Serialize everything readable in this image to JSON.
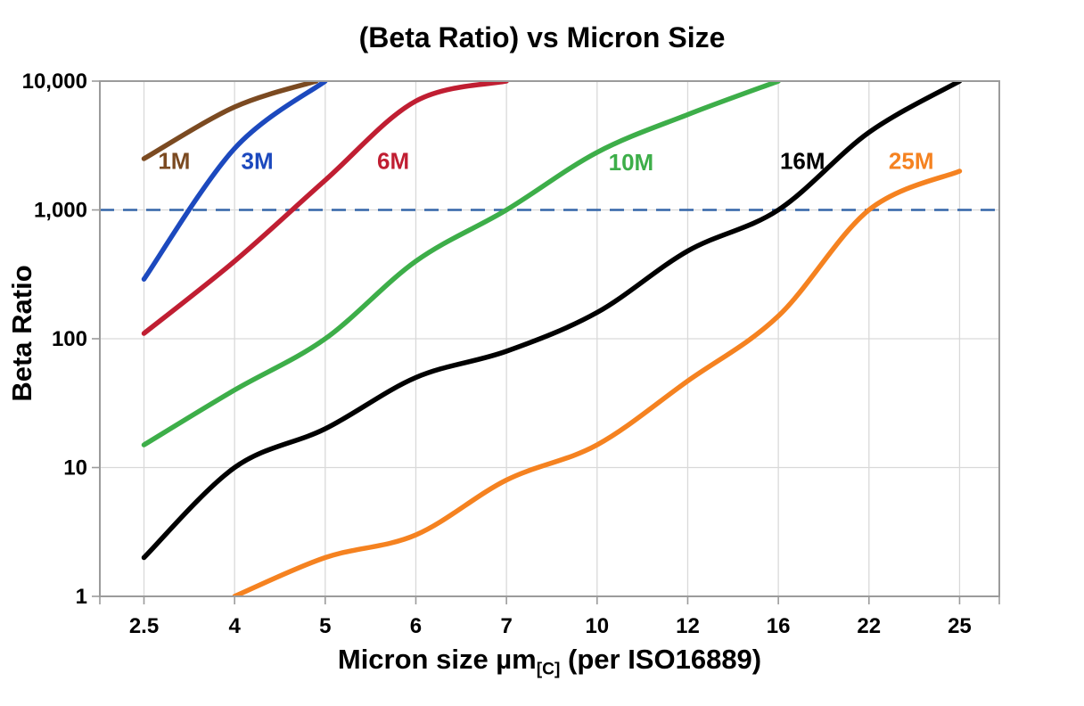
{
  "chart_data": {
    "type": "line",
    "title": "(Beta Ratio) vs Micron Size",
    "ylabel": "Beta Ratio",
    "xlabel_prefix": "Micron size µm",
    "xlabel_subscript": "[C]",
    "xlabel_suffix": " (per ISO16889)",
    "x_categories": [
      2.5,
      4,
      5,
      6,
      7,
      10,
      12,
      16,
      22,
      25
    ],
    "x_tick_labels": [
      "2.5",
      "4",
      "5",
      "6",
      "7",
      "10",
      "12",
      "16",
      "22",
      "25"
    ],
    "y_scale": "log",
    "ylim": [
      1,
      10000
    ],
    "y_ticks": [
      1,
      10,
      100,
      1000,
      10000
    ],
    "y_tick_labels": [
      "1",
      "10",
      "100",
      "1,000",
      "10,000"
    ],
    "grid": {
      "show": true,
      "color": "#d9d9d9",
      "border_color": "#9b9b9b",
      "tick_color": "#9b9b9b"
    },
    "reference_line": {
      "beta": 1000,
      "style": "dashed",
      "color": "#3465A8"
    },
    "series": [
      {
        "name": "1M",
        "color": "#7B4A21",
        "label_pos": {
          "micron": 3.0,
          "beta": 2400
        },
        "points": [
          [
            2.5,
            2500
          ],
          [
            4,
            6300
          ],
          [
            4.9,
            10000
          ]
        ]
      },
      {
        "name": "3M",
        "color": "#1C49BE",
        "label_pos": {
          "micron": 4.25,
          "beta": 2400
        },
        "points": [
          [
            2.5,
            290
          ],
          [
            4,
            3000
          ],
          [
            5,
            10000
          ]
        ]
      },
      {
        "name": "6M",
        "color": "#C01E32",
        "label_pos": {
          "micron": 5.75,
          "beta": 2400
        },
        "points": [
          [
            2.5,
            110
          ],
          [
            4,
            400
          ],
          [
            5,
            1700
          ],
          [
            6,
            7000
          ],
          [
            7,
            10000
          ]
        ]
      },
      {
        "name": "10M",
        "color": "#3DAE49",
        "label_pos": {
          "micron": 10.75,
          "beta": 2350
        },
        "points": [
          [
            2.5,
            15
          ],
          [
            4,
            40
          ],
          [
            5,
            100
          ],
          [
            6,
            400
          ],
          [
            7,
            1000
          ],
          [
            10,
            2800
          ],
          [
            12,
            5500
          ],
          [
            16,
            10000
          ]
        ]
      },
      {
        "name": "16M",
        "color": "#000000",
        "label_pos": {
          "micron": 17.6,
          "beta": 2400
        },
        "points": [
          [
            2.5,
            2
          ],
          [
            4,
            10
          ],
          [
            5,
            20
          ],
          [
            6,
            50
          ],
          [
            7,
            80
          ],
          [
            10,
            160
          ],
          [
            12,
            480
          ],
          [
            16,
            1000
          ],
          [
            22,
            4000
          ],
          [
            25,
            10000
          ]
        ]
      },
      {
        "name": "25M",
        "color": "#F58220",
        "label_pos": {
          "micron": 23.4,
          "beta": 2400
        },
        "points": [
          [
            4,
            1
          ],
          [
            5,
            2
          ],
          [
            6,
            3
          ],
          [
            7,
            8
          ],
          [
            10,
            15
          ],
          [
            12,
            47
          ],
          [
            16,
            150
          ],
          [
            22,
            1000
          ],
          [
            25,
            2000
          ]
        ]
      }
    ]
  }
}
